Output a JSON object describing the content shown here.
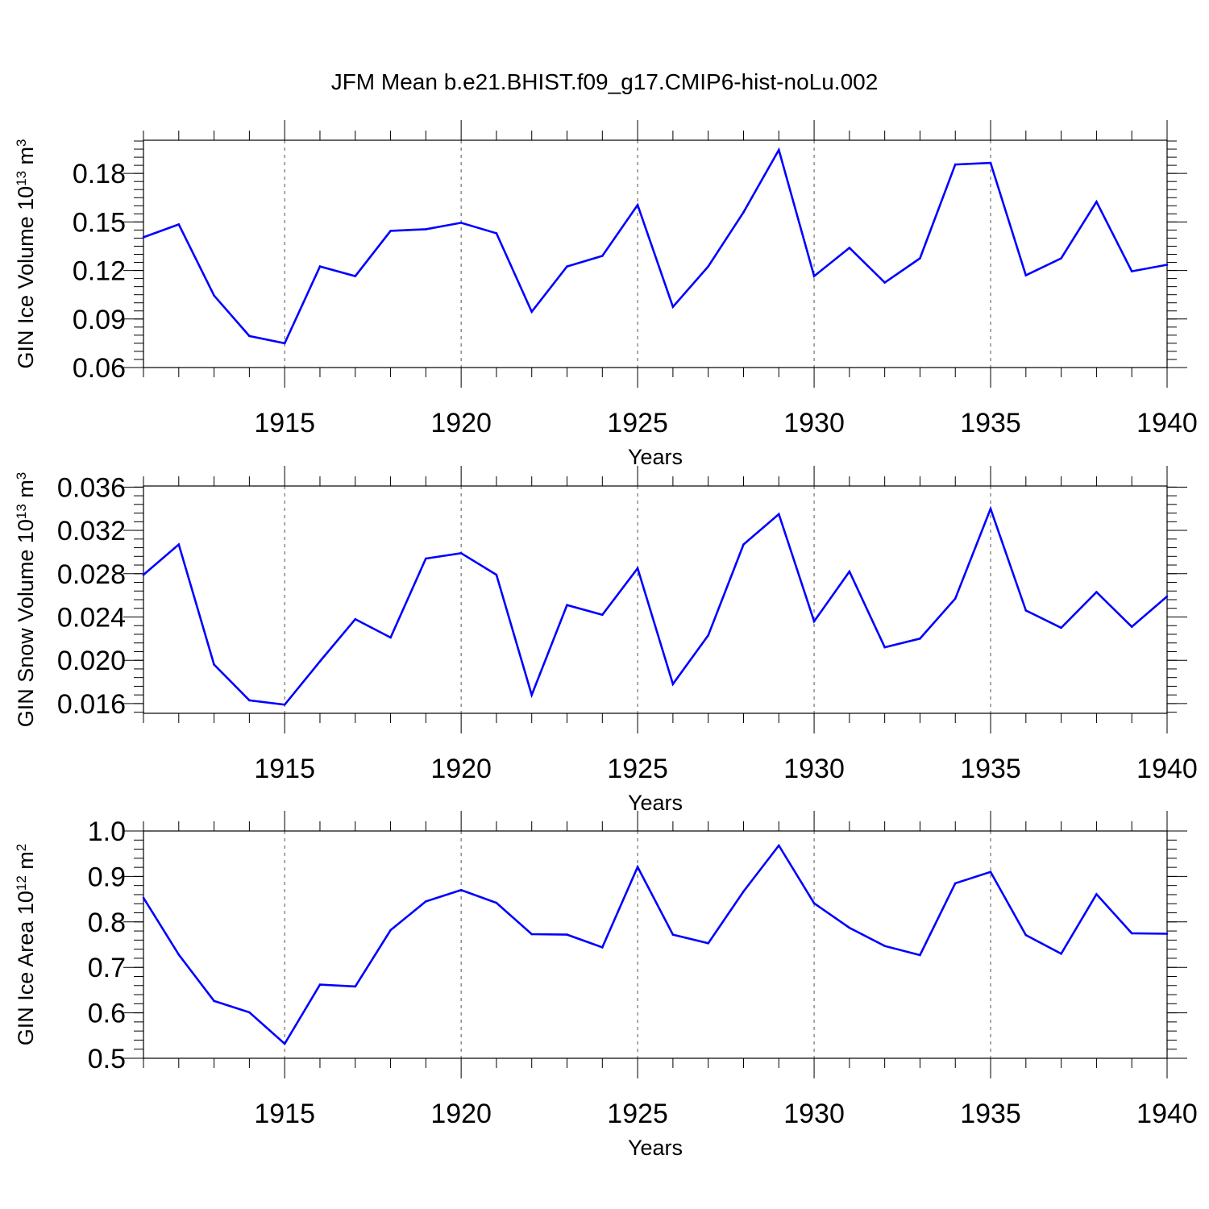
{
  "title": "JFM Mean b.e21.BHIST.f09_g17.CMIP6-hist-noLu.002",
  "line_color": "#0000ff",
  "chart_data": [
    {
      "type": "line",
      "title": "JFM Mean b.e21.BHIST.f09_g17.CMIP6-hist-noLu.002",
      "xlabel": "Years",
      "ylabel": {
        "base": "GIN Ice Volume 10",
        "exp": "13",
        "unit": " m",
        "unit_exp": "3"
      },
      "xlim": [
        1911,
        1940
      ],
      "ylim": [
        0.06,
        0.2005
      ],
      "xticks": [
        "1915",
        "1920",
        "1925",
        "1930",
        "1935",
        "1940"
      ],
      "yticks": [
        "0.06",
        "0.09",
        "0.12",
        "0.15",
        "0.18"
      ],
      "grid": "vertical dashed at major x ticks",
      "x": [
        1911,
        1912,
        1913,
        1914,
        1915,
        1916,
        1917,
        1918,
        1919,
        1920,
        1921,
        1922,
        1923,
        1924,
        1925,
        1926,
        1927,
        1928,
        1929,
        1930,
        1931,
        1932,
        1933,
        1934,
        1935,
        1936,
        1937,
        1938,
        1939,
        1940
      ],
      "y": [
        0.1405,
        0.1485,
        0.1045,
        0.0795,
        0.075,
        0.1225,
        0.1165,
        0.1445,
        0.1455,
        0.1495,
        0.143,
        0.0945,
        0.1225,
        0.129,
        0.1605,
        0.0975,
        0.1225,
        0.156,
        0.1945,
        0.1165,
        0.134,
        0.1125,
        0.1275,
        0.1855,
        0.1865,
        0.117,
        0.1275,
        0.1625,
        0.1195,
        0.1235
      ]
    },
    {
      "type": "line",
      "xlabel": "Years",
      "ylabel": {
        "base": "GIN Snow Volume 10",
        "exp": "13",
        "unit": " m",
        "unit_exp": "3"
      },
      "xlim": [
        1911,
        1940
      ],
      "ylim": [
        0.0151,
        0.0361
      ],
      "xticks": [
        "1915",
        "1920",
        "1925",
        "1930",
        "1935",
        "1940"
      ],
      "yticks": [
        "0.016",
        "0.020",
        "0.024",
        "0.028",
        "0.032",
        "0.036"
      ],
      "grid": "vertical dashed at major x ticks",
      "x": [
        1911,
        1912,
        1913,
        1914,
        1915,
        1916,
        1917,
        1918,
        1919,
        1920,
        1921,
        1922,
        1923,
        1924,
        1925,
        1926,
        1927,
        1928,
        1929,
        1930,
        1931,
        1932,
        1933,
        1934,
        1935,
        1936,
        1937,
        1938,
        1939,
        1940
      ],
      "y": [
        0.0279,
        0.0307,
        0.0196,
        0.0163,
        0.0159,
        0.0199,
        0.0238,
        0.0221,
        0.0294,
        0.0299,
        0.0279,
        0.0168,
        0.0251,
        0.0242,
        0.0285,
        0.0178,
        0.0223,
        0.0307,
        0.0335,
        0.0236,
        0.0282,
        0.0212,
        0.022,
        0.0257,
        0.034,
        0.0246,
        0.023,
        0.0263,
        0.0231,
        0.0259
      ]
    },
    {
      "type": "line",
      "xlabel": "Years",
      "ylabel": {
        "base": "GIN Ice Area 10",
        "exp": "12",
        "unit": " m",
        "unit_exp": "2"
      },
      "xlim": [
        1911,
        1940
      ],
      "ylim": [
        0.5,
        1.0
      ],
      "xticks": [
        "1915",
        "1920",
        "1925",
        "1930",
        "1935",
        "1940"
      ],
      "yticks": [
        "0.5",
        "0.6",
        "0.7",
        "0.8",
        "0.9",
        "1.0"
      ],
      "grid": "vertical dashed at major x ticks",
      "x": [
        1911,
        1912,
        1913,
        1914,
        1915,
        1916,
        1917,
        1918,
        1919,
        1920,
        1921,
        1922,
        1923,
        1924,
        1925,
        1926,
        1927,
        1928,
        1929,
        1930,
        1931,
        1932,
        1933,
        1934,
        1935,
        1936,
        1937,
        1938,
        1939,
        1940
      ],
      "y": [
        0.853,
        0.728,
        0.626,
        0.601,
        0.532,
        0.662,
        0.658,
        0.782,
        0.845,
        0.87,
        0.842,
        0.773,
        0.772,
        0.744,
        0.921,
        0.772,
        0.753,
        0.867,
        0.968,
        0.841,
        0.787,
        0.747,
        0.727,
        0.885,
        0.91,
        0.771,
        0.73,
        0.861,
        0.775,
        0.774
      ]
    }
  ]
}
